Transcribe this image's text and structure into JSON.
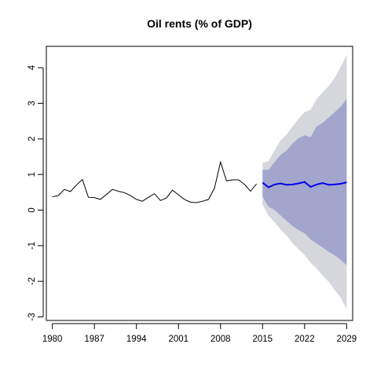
{
  "chart_data": {
    "type": "line",
    "title": "Oil rents (% of GDP)",
    "xlabel": "",
    "ylabel": "",
    "xlim": [
      1979,
      2030
    ],
    "ylim": [
      -3.1,
      4.6
    ],
    "x_ticks": [
      1980,
      1987,
      1994,
      2001,
      2008,
      2015,
      2022,
      2029
    ],
    "y_ticks": [
      -3,
      -2,
      -1,
      0,
      1,
      2,
      3,
      4
    ],
    "grid": false,
    "colors": {
      "history": "#000000",
      "forecast": "#0000ee",
      "band_80": "#a2a5cc",
      "band_95": "#d6d6dd"
    },
    "history": {
      "x": [
        1980,
        1981,
        1982,
        1983,
        1984,
        1985,
        1986,
        1987,
        1988,
        1989,
        1990,
        1991,
        1992,
        1993,
        1994,
        1995,
        1996,
        1997,
        1998,
        1999,
        2000,
        2001,
        2002,
        2003,
        2004,
        2005,
        2006,
        2007,
        2008,
        2009,
        2010,
        2011,
        2012,
        2013,
        2014
      ],
      "y": [
        0.37,
        0.41,
        0.58,
        0.52,
        0.7,
        0.86,
        0.36,
        0.35,
        0.3,
        0.44,
        0.58,
        0.53,
        0.49,
        0.41,
        0.3,
        0.25,
        0.36,
        0.46,
        0.27,
        0.34,
        0.56,
        0.43,
        0.3,
        0.22,
        0.21,
        0.25,
        0.3,
        0.62,
        1.35,
        0.82,
        0.85,
        0.85,
        0.72,
        0.53,
        0.74
      ]
    },
    "forecast": {
      "x": [
        2015,
        2016,
        2017,
        2018,
        2019,
        2020,
        2021,
        2022,
        2023,
        2024,
        2025,
        2026,
        2027,
        2028,
        2029
      ],
      "mean": [
        0.77,
        0.64,
        0.72,
        0.75,
        0.71,
        0.72,
        0.75,
        0.79,
        0.65,
        0.72,
        0.76,
        0.71,
        0.72,
        0.74,
        0.78
      ],
      "lo80": [
        0.37,
        0.1,
        0.0,
        -0.15,
        -0.3,
        -0.45,
        -0.56,
        -0.65,
        -0.82,
        -0.94,
        -1.05,
        -1.17,
        -1.27,
        -1.4,
        -1.55
      ],
      "hi80": [
        1.13,
        1.13,
        1.35,
        1.55,
        1.67,
        1.87,
        2.02,
        2.1,
        2.05,
        2.35,
        2.45,
        2.6,
        2.75,
        2.9,
        3.13
      ],
      "lo95": [
        0.15,
        -0.16,
        -0.34,
        -0.54,
        -0.72,
        -0.93,
        -1.1,
        -1.26,
        -1.48,
        -1.64,
        -1.84,
        -2.01,
        -2.24,
        -2.46,
        -2.78
      ],
      "hi95": [
        1.33,
        1.38,
        1.67,
        1.96,
        2.12,
        2.35,
        2.57,
        2.75,
        2.82,
        3.12,
        3.31,
        3.48,
        3.72,
        4.02,
        4.35
      ]
    }
  }
}
